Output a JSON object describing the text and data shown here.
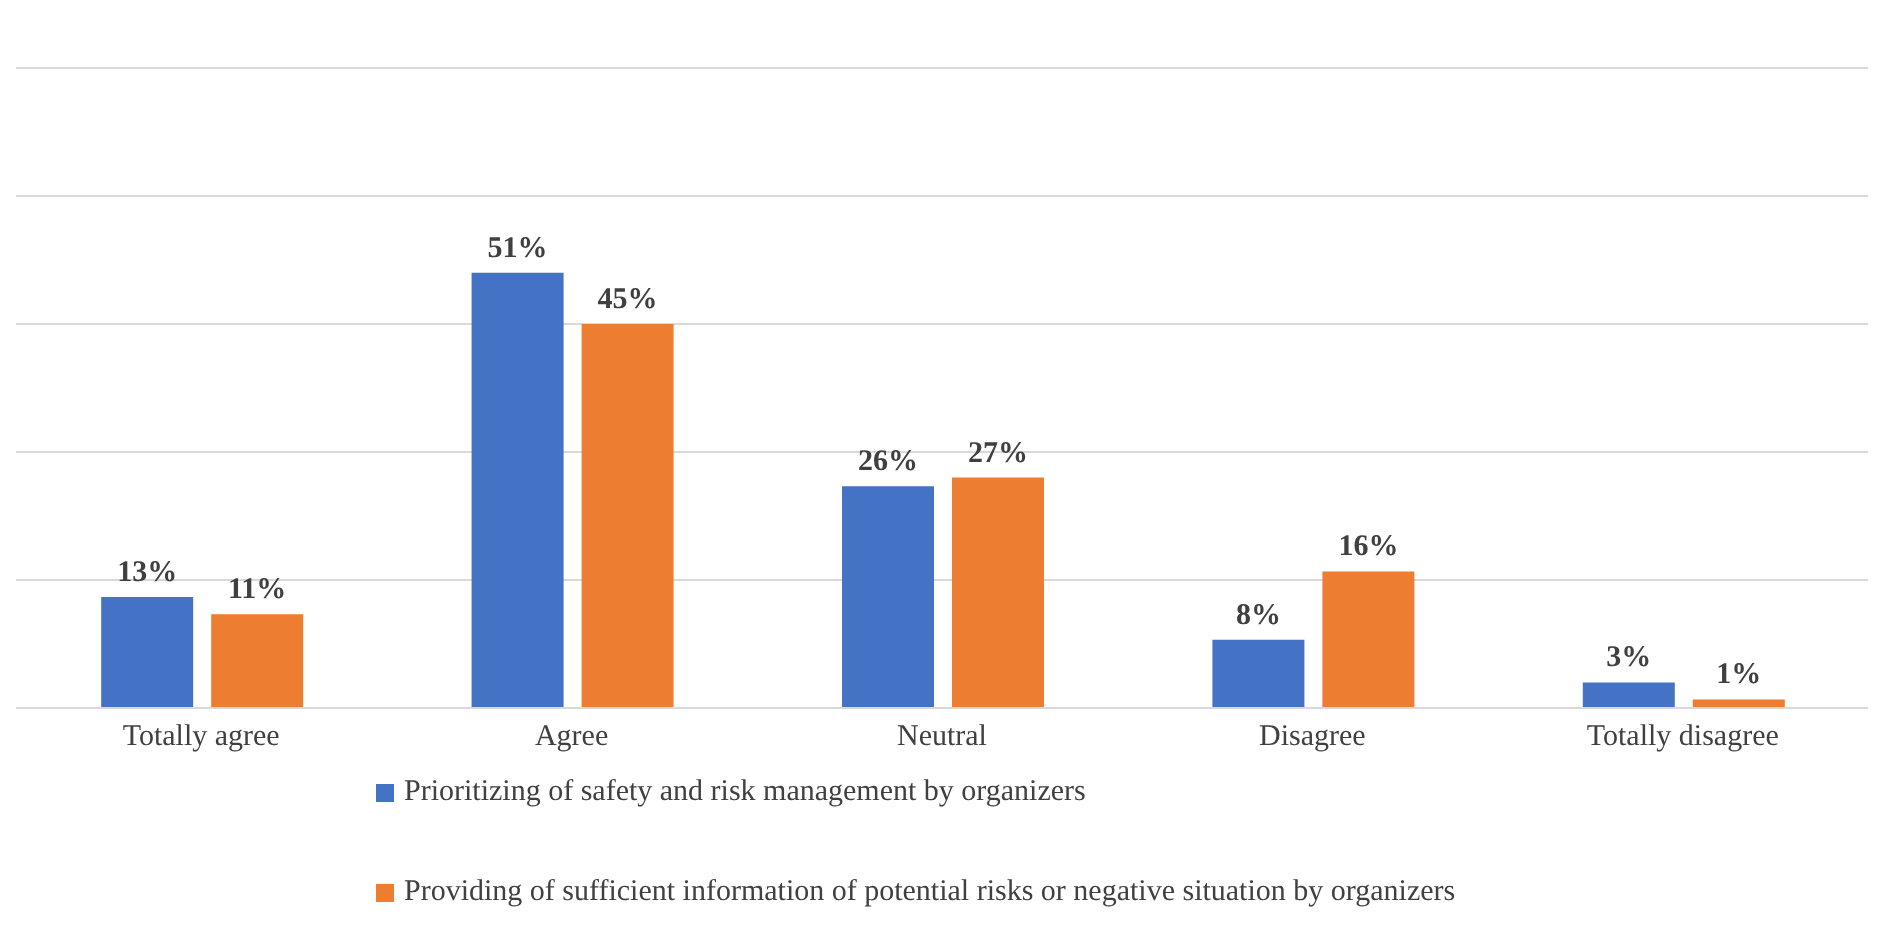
{
  "chart_data": {
    "type": "bar",
    "categories": [
      "Totally agree",
      "Agree",
      "Neutral",
      "Disagree",
      "Totally disagree"
    ],
    "series": [
      {
        "name": "Prioritizing of safety and risk management by organizers",
        "color": "#4472c4",
        "values": [
          13,
          51,
          26,
          8,
          3
        ],
        "value_labels": [
          "13%",
          "51%",
          "26%",
          "8%",
          "3%"
        ]
      },
      {
        "name": "Providing of sufficient information of potential risks or negative situation by organizers",
        "color": "#ed7d31",
        "values": [
          11,
          45,
          27,
          16,
          1
        ],
        "value_labels": [
          "11%",
          "45%",
          "27%",
          "16%",
          "1%"
        ]
      }
    ],
    "tick_labels": "x",
    "grid": "y",
    "legend": "bottom"
  }
}
